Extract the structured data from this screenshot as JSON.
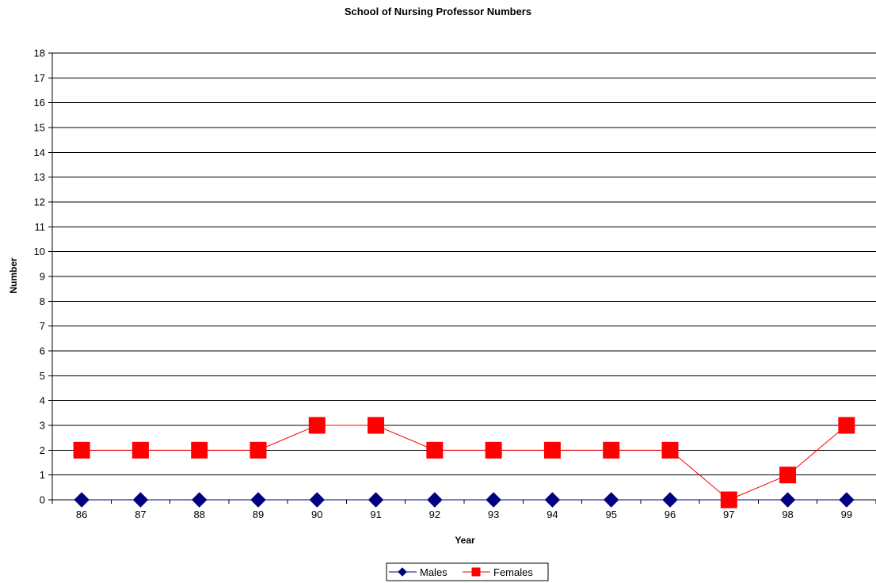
{
  "chart_data": {
    "type": "line",
    "title": "School of Nursing Professor Numbers",
    "xlabel": "Year",
    "ylabel": "Number",
    "categories": [
      "86",
      "87",
      "88",
      "89",
      "90",
      "91",
      "92",
      "93",
      "94",
      "95",
      "96",
      "97",
      "98",
      "99"
    ],
    "ylim": [
      0,
      18
    ],
    "yticks": [
      0,
      1,
      2,
      3,
      4,
      5,
      6,
      7,
      8,
      9,
      10,
      11,
      12,
      13,
      14,
      15,
      16,
      17,
      18
    ],
    "grid": true,
    "legend_position": "bottom",
    "series": [
      {
        "name": "Males",
        "marker": "diamond",
        "color": "#000080",
        "values": [
          0,
          0,
          0,
          0,
          0,
          0,
          0,
          0,
          0,
          0,
          0,
          0,
          0,
          0
        ]
      },
      {
        "name": "Females",
        "marker": "square",
        "color": "#FF0000",
        "values": [
          2,
          2,
          2,
          2,
          3,
          3,
          2,
          2,
          2,
          2,
          2,
          0,
          1,
          3
        ]
      }
    ]
  }
}
